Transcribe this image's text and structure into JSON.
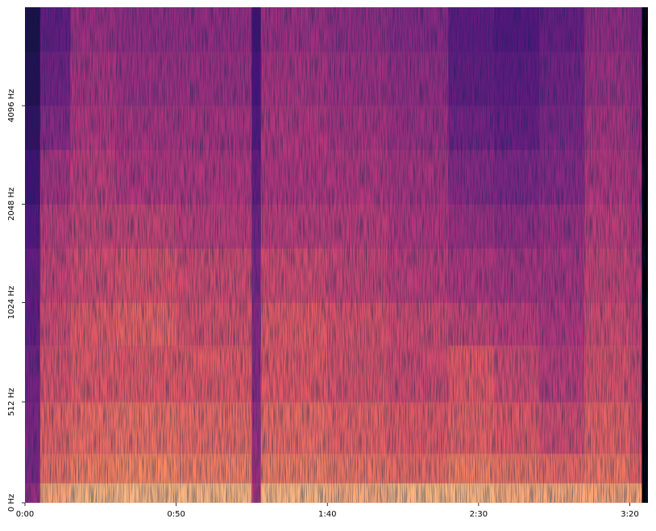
{
  "chart_data": {
    "type": "spectrogram",
    "xticks": [
      {
        "value": 0,
        "label": "0:00"
      },
      {
        "value": 50,
        "label": "0:50"
      },
      {
        "value": 100,
        "label": "1:40"
      },
      {
        "value": 150,
        "label": "2:30"
      },
      {
        "value": 200,
        "label": "3:20"
      }
    ],
    "yticks": [
      {
        "value": 0,
        "label": "0 Hz"
      },
      {
        "value": 512,
        "label": "512 Hz"
      },
      {
        "value": 1024,
        "label": "1024 Hz"
      },
      {
        "value": 2048,
        "label": "2048 Hz"
      },
      {
        "value": 4096,
        "label": "4096 Hz"
      }
    ],
    "xlim": [
      0,
      206
    ],
    "ylim": [
      0,
      8192
    ],
    "y_scale": "symlog",
    "linthresh": 1000,
    "base": 2,
    "colormap": "magma",
    "zlim": [
      -80,
      0
    ],
    "xbins": [
      0,
      5,
      15,
      30,
      50,
      75,
      78,
      100,
      120,
      140,
      155,
      170,
      185,
      200,
      204,
      206
    ],
    "ybins": [
      0,
      100,
      250,
      512,
      800,
      1024,
      1500,
      2048,
      3000,
      4096,
      6000,
      8192
    ],
    "z": [
      [
        -45,
        -15,
        -12,
        -12,
        -12,
        -40,
        -12,
        -14,
        -12,
        -12,
        -14,
        -14,
        -15,
        -15,
        -80
      ],
      [
        -50,
        -25,
        -22,
        -20,
        -22,
        -45,
        -22,
        -24,
        -26,
        -22,
        -24,
        -26,
        -24,
        -28,
        -80
      ],
      [
        -50,
        -28,
        -26,
        -25,
        -26,
        -45,
        -26,
        -28,
        -30,
        -28,
        -30,
        -34,
        -28,
        -32,
        -80
      ],
      [
        -52,
        -32,
        -30,
        -30,
        -30,
        -48,
        -30,
        -32,
        -34,
        -30,
        -34,
        -38,
        -32,
        -34,
        -80
      ],
      [
        -55,
        -34,
        -30,
        -28,
        -32,
        -48,
        -30,
        -32,
        -34,
        -36,
        -38,
        -40,
        -34,
        -36,
        -80
      ],
      [
        -55,
        -36,
        -34,
        -32,
        -34,
        -50,
        -34,
        -36,
        -38,
        -40,
        -42,
        -42,
        -36,
        -38,
        -80
      ],
      [
        -58,
        -38,
        -36,
        -36,
        -38,
        -52,
        -38,
        -38,
        -40,
        -44,
        -46,
        -44,
        -38,
        -40,
        -80
      ],
      [
        -62,
        -42,
        -38,
        -40,
        -40,
        -55,
        -40,
        -40,
        -42,
        -48,
        -50,
        -48,
        -40,
        -42,
        -80
      ],
      [
        -65,
        -48,
        -40,
        -42,
        -42,
        -58,
        -40,
        -42,
        -44,
        -52,
        -54,
        -50,
        -42,
        -44,
        -80
      ],
      [
        -68,
        -52,
        -42,
        -44,
        -44,
        -60,
        -42,
        -44,
        -46,
        -55,
        -56,
        -52,
        -44,
        -46,
        -80
      ],
      [
        -70,
        -55,
        -44,
        -46,
        -46,
        -62,
        -44,
        -46,
        -48,
        -56,
        -58,
        -54,
        -46,
        -48,
        -80
      ]
    ]
  }
}
